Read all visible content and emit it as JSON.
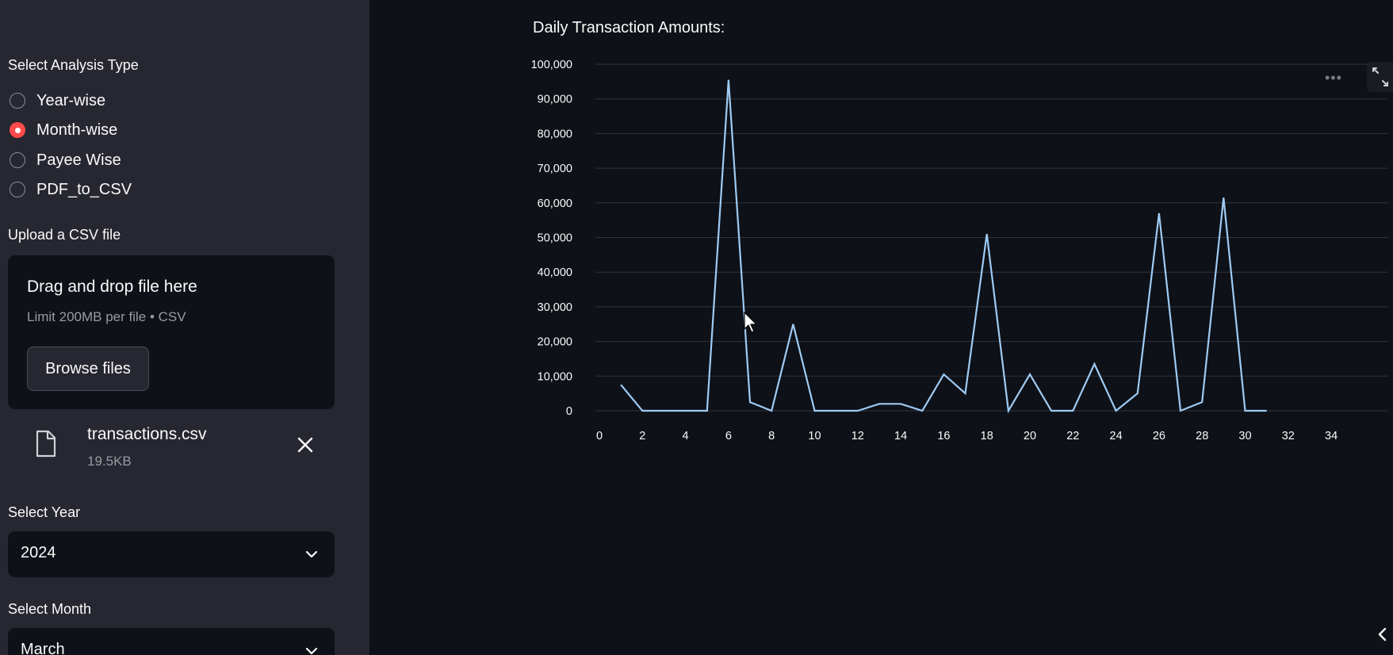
{
  "sidebar": {
    "analysis_label": "Select Analysis Type",
    "analysis_options": [
      {
        "label": "Year-wise",
        "checked": false
      },
      {
        "label": "Month-wise",
        "checked": true
      },
      {
        "label": "Payee Wise",
        "checked": false
      },
      {
        "label": "PDF_to_CSV",
        "checked": false
      }
    ],
    "upload_label": "Upload a CSV file",
    "uploader": {
      "title": "Drag and drop file here",
      "subtitle": "Limit 200MB per file • CSV",
      "browse_label": "Browse files"
    },
    "file": {
      "name": "transactions.csv",
      "size": "19.5KB",
      "icon": "file-icon",
      "remove_icon": "close-icon"
    },
    "year_label": "Select Year",
    "year_value": "2024",
    "month_label": "Select Month",
    "month_value": "March"
  },
  "main": {
    "chart_title": "Daily Transaction Amounts:",
    "more_icon": "more-horizontal-icon",
    "expand_icon": "expand-icon",
    "collapse_icon": "chevron-left-icon"
  },
  "colors": {
    "accent": "#ff4b4b",
    "line": "#9ecbf5",
    "sidebar_bg": "#262730",
    "main_bg": "#0e1117"
  },
  "chart_data": {
    "type": "line",
    "title": "Daily Transaction Amounts:",
    "xlabel": "",
    "ylabel": "",
    "xlim": [
      0,
      35
    ],
    "ylim": [
      0,
      100000
    ],
    "x_ticks": [
      0,
      2,
      4,
      6,
      8,
      10,
      12,
      14,
      16,
      18,
      20,
      22,
      24,
      26,
      28,
      30,
      32,
      34
    ],
    "y_ticks": [
      0,
      10000,
      20000,
      30000,
      40000,
      50000,
      60000,
      70000,
      80000,
      90000,
      100000
    ],
    "y_tick_labels": [
      "0",
      "10,000",
      "20,000",
      "30,000",
      "40,000",
      "50,000",
      "60,000",
      "70,000",
      "80,000",
      "90,000",
      "100,000"
    ],
    "grid": true,
    "series": [
      {
        "x": [
          1,
          2,
          3,
          4,
          5,
          6,
          7,
          8,
          9,
          10,
          11,
          12,
          13,
          14,
          15,
          16,
          17,
          18,
          19,
          20,
          21,
          22,
          23,
          24,
          25,
          26,
          27,
          28,
          29,
          30,
          31
        ],
        "values": [
          7500,
          0,
          0,
          0,
          0,
          95500,
          2500,
          0,
          25000,
          0,
          0,
          0,
          2000,
          2000,
          0,
          10500,
          5000,
          51000,
          0,
          10500,
          0,
          0,
          13500,
          0,
          5000,
          57000,
          0,
          2500,
          61500,
          0,
          0
        ]
      }
    ]
  }
}
